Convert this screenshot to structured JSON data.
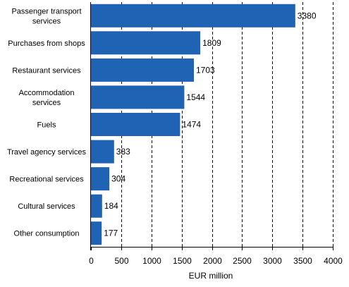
{
  "chart_data": {
    "type": "bar",
    "orientation": "horizontal",
    "categories": [
      "Passenger transport services",
      "Purchases from shops",
      "Restaurant services",
      "Accommodation services",
      "Fuels",
      "Travel agency services",
      "Recreational services",
      "Cultural services",
      "Other consumption"
    ],
    "category_lines": [
      [
        "Passenger transport",
        "services"
      ],
      [
        "Purchases from shops"
      ],
      [
        "Restaurant services"
      ],
      [
        "Accommodation",
        "services"
      ],
      [
        "Fuels"
      ],
      [
        "Travel agency services"
      ],
      [
        "Recreational services"
      ],
      [
        "Cultural services"
      ],
      [
        "Other consumption"
      ]
    ],
    "values": [
      3380,
      1809,
      1703,
      1544,
      1474,
      383,
      304,
      184,
      177
    ],
    "value_labels": [
      "3380",
      "1809",
      "1703",
      "1544",
      "1474",
      "383",
      "304",
      "184",
      "177"
    ],
    "xlabel": "EUR million",
    "xlim": [
      0,
      4000
    ],
    "xticks": [
      0,
      500,
      1000,
      1500,
      2000,
      2500,
      3000,
      3500,
      4000
    ],
    "xtick_labels": [
      "0",
      "500",
      "1000",
      "1500",
      "2000",
      "2500",
      "3000",
      "3500",
      "4000"
    ],
    "grid": "vertical dashed",
    "legend": "none",
    "bar_color": "#1f63b4"
  }
}
